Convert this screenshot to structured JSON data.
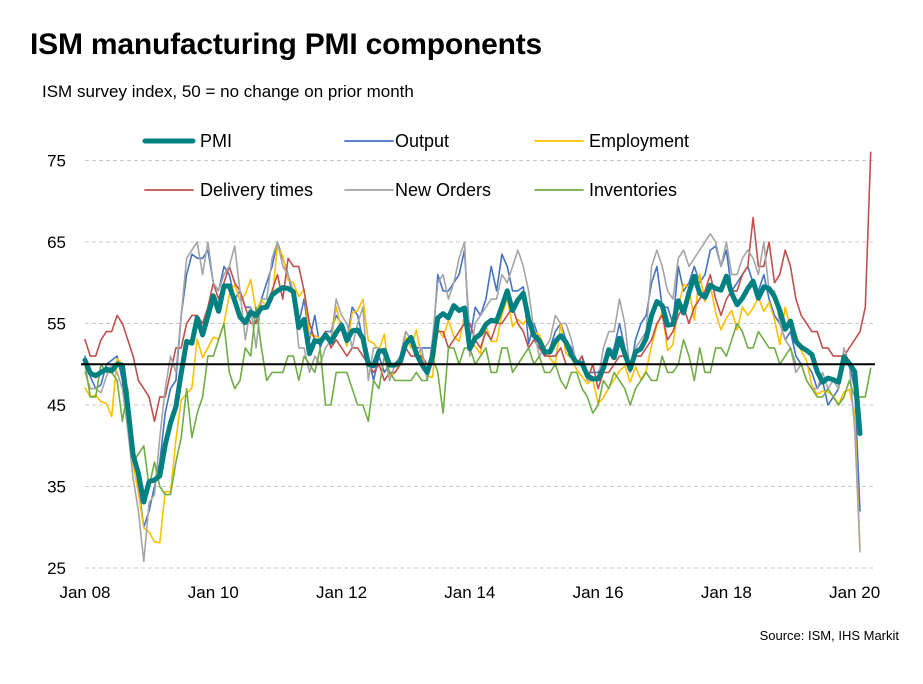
{
  "title": "ISM manufacturing PMI components",
  "subtitle": "ISM survey index, 50 = no change on prior month",
  "source": "Source: ISM, IHS Markit",
  "chart_data": {
    "type": "line",
    "title": "ISM manufacturing PMI components",
    "xlabel": "",
    "ylabel": "",
    "ylim": [
      25,
      76
    ],
    "yticks": [
      "25",
      "35",
      "45",
      "55",
      "65",
      "75"
    ],
    "xticks": [
      "Jan 08",
      "Jan 10",
      "Jan 12",
      "Jan 14",
      "Jan 16",
      "Jan 18",
      "Jan 20"
    ],
    "reference_line": 50,
    "grid": "horizontal dashed",
    "legend": "top",
    "x_start": "Jan 2008",
    "x_step": "month",
    "series": [
      {
        "name": "PMI",
        "color": "#008080",
        "values": [
          50.5,
          48.9,
          48.6,
          49.0,
          49.4,
          49.2,
          50.0,
          49.9,
          44.8,
          38.9,
          36.6,
          33.1,
          35.6,
          35.8,
          36.3,
          40.1,
          42.8,
          44.8,
          48.9,
          52.8,
          52.6,
          55.7,
          53.6,
          55.9,
          58.4,
          56.5,
          59.6,
          59.6,
          57.8,
          55.8,
          55.1,
          56.4,
          56.0,
          56.9,
          57.0,
          58.5,
          59.0,
          59.4,
          59.3,
          58.9,
          54.5,
          55.5,
          51.3,
          52.9,
          52.7,
          53.6,
          52.7,
          53.9,
          54.8,
          52.9,
          54.1,
          54.2,
          53.2,
          50.0,
          49.8,
          51.6,
          51.7,
          49.9,
          49.9,
          50.3,
          52.5,
          53.3,
          51.3,
          50.0,
          49.0,
          50.9,
          55.7,
          56.2,
          55.7,
          57.2,
          56.6,
          56.9,
          51.9,
          53.2,
          53.7,
          54.9,
          55.4,
          55.3,
          57.1,
          59.0,
          56.6,
          57.9,
          58.7,
          55.5,
          53.5,
          52.9,
          51.5,
          51.5,
          52.8,
          53.5,
          52.7,
          51.1,
          50.2,
          50.1,
          48.6,
          48.2,
          48.2,
          49.5,
          51.8,
          50.8,
          53.2,
          51.3,
          49.4,
          51.5,
          51.9,
          53.2,
          56.0,
          57.7,
          57.2,
          54.8,
          54.9,
          57.8,
          56.3,
          58.8,
          60.8,
          58.7,
          58.2,
          59.7,
          59.3,
          59.1,
          60.8,
          58.7,
          57.3,
          58.1,
          59.3,
          60.2,
          58.1,
          59.5,
          59.3,
          58.3,
          56.6,
          54.3,
          55.3,
          52.8,
          52.1,
          51.7,
          51.2,
          49.1,
          47.8,
          48.3,
          48.1,
          47.8,
          50.9,
          50.1,
          49.1,
          41.5
        ]
      },
      {
        "name": "Output",
        "color": "#4472c4",
        "values": [
          51.0,
          48.5,
          47.0,
          47.5,
          50.0,
          50.5,
          51.0,
          48.0,
          42.0,
          40.0,
          35.0,
          30.0,
          32.0,
          35.0,
          38.0,
          44.0,
          47.0,
          48.0,
          56.0,
          61.0,
          63.5,
          63.0,
          63.0,
          64.0,
          60.0,
          59.0,
          62.0,
          61.0,
          58.0,
          59.0,
          57.0,
          57.0,
          55.0,
          58.0,
          60.0,
          62.0,
          65.0,
          63.0,
          61.0,
          58.0,
          55.0,
          58.0,
          53.0,
          56.0,
          52.0,
          54.0,
          54.0,
          56.0,
          55.0,
          53.0,
          57.0,
          56.0,
          53.0,
          51.0,
          48.0,
          51.0,
          49.0,
          50.0,
          50.0,
          51.0,
          54.0,
          53.0,
          52.0,
          52.0,
          52.0,
          52.0,
          61.0,
          59.0,
          59.0,
          60.0,
          61.0,
          64.0,
          53.0,
          57.0,
          56.0,
          58.0,
          62.0,
          59.0,
          63.5,
          62.0,
          59.0,
          59.0,
          59.5,
          52.5,
          55.0,
          53.0,
          51.0,
          52.0,
          54.0,
          55.0,
          53.0,
          52.0,
          50.0,
          51.0,
          49.0,
          49.0,
          49.0,
          50.0,
          51.0,
          52.0,
          55.0,
          52.0,
          49.0,
          53.0,
          55.0,
          56.0,
          60.0,
          62.0,
          57.0,
          57.0,
          55.0,
          62.0,
          59.0,
          60.0,
          62.0,
          60.0,
          61.0,
          64.0,
          64.5,
          62.0,
          64.0,
          59.0,
          60.0,
          61.0,
          62.0,
          60.0,
          59.0,
          61.0,
          58.0,
          56.0,
          55.0,
          53.0,
          54.0,
          51.0,
          50.0,
          50.0,
          49.0,
          47.0,
          48.0,
          45.0,
          46.0,
          47.0,
          51.0,
          50.0,
          47.0,
          32.0
        ]
      },
      {
        "name": "Employment",
        "color": "#ffc000",
        "values": [
          47.1,
          46.0,
          46.2,
          45.4,
          45.2,
          43.6,
          50.7,
          50.0,
          41.8,
          37.7,
          34.2,
          29.9,
          29.4,
          28.2,
          28.1,
          34.4,
          34.3,
          40.7,
          45.6,
          46.4,
          47.1,
          53.1,
          50.8,
          52.0,
          53.3,
          53.1,
          55.1,
          58.5,
          59.8,
          57.8,
          58.6,
          60.4,
          56.5,
          57.9,
          57.0,
          57.9,
          64.5,
          63.3,
          60.3,
          60.0,
          58.3,
          59.2,
          53.5,
          53.5,
          53.2,
          53.3,
          52.6,
          57.1,
          54.2,
          52.2,
          56.3,
          56.6,
          58.0,
          52.9,
          52.6,
          51.7,
          53.7,
          48.4,
          49.0,
          49.9,
          53.3,
          52.0,
          54.2,
          50.7,
          48.6,
          48.4,
          54.4,
          53.3,
          55.4,
          53.4,
          52.8,
          55.9,
          52.3,
          52.2,
          51.3,
          54.7,
          52.8,
          52.8,
          56.0,
          58.1,
          54.6,
          55.5,
          54.9,
          56.0,
          54.0,
          53.6,
          52.1,
          50.7,
          50.0,
          55.0,
          51.3,
          50.8,
          49.3,
          48.5,
          47.6,
          48.1,
          45.2,
          45.9,
          47.1,
          48.1,
          49.2,
          49.8,
          47.8,
          49.7,
          48.1,
          49.2,
          52.3,
          54.7,
          56.5,
          51.7,
          52.4,
          57.0,
          59.8,
          59.4,
          55.4,
          61.1,
          57.7,
          59.7,
          56.3,
          54.2,
          55.7,
          56.6,
          54.2,
          57.0,
          56.0,
          56.9,
          58.2,
          56.5,
          57.6,
          55.5,
          52.4,
          57.0,
          54.5,
          53.7,
          51.7,
          50.4,
          47.4,
          46.3,
          46.7,
          46.6,
          46.1,
          45.1,
          46.6,
          46.9,
          43.8,
          27.5
        ]
      },
      {
        "name": "Delivery times",
        "color": "#c0504d",
        "values": [
          53.0,
          51.0,
          51.0,
          53.0,
          54.0,
          54.0,
          56.0,
          55.0,
          53.0,
          51.0,
          48.0,
          47.0,
          46.0,
          43.0,
          46.0,
          46.0,
          49.0,
          52.0,
          52.0,
          55.0,
          56.0,
          56.0,
          55.0,
          57.0,
          60.0,
          58.0,
          60.0,
          62.0,
          60.0,
          59.0,
          57.0,
          55.0,
          55.0,
          57.0,
          57.0,
          59.0,
          61.0,
          58.0,
          63.0,
          62.0,
          62.0,
          59.0,
          55.0,
          53.0,
          53.0,
          54.0,
          52.0,
          53.0,
          52.0,
          51.0,
          52.0,
          52.0,
          51.0,
          50.0,
          49.0,
          50.0,
          48.0,
          49.0,
          49.0,
          50.0,
          52.0,
          51.0,
          51.0,
          51.0,
          50.0,
          50.0,
          54.0,
          54.0,
          52.0,
          53.0,
          54.0,
          55.0,
          55.0,
          53.0,
          52.0,
          54.0,
          53.0,
          55.0,
          55.0,
          56.0,
          57.0,
          55.0,
          54.0,
          52.0,
          53.0,
          52.0,
          51.0,
          51.0,
          51.0,
          52.0,
          50.0,
          50.0,
          50.0,
          51.0,
          48.0,
          50.0,
          47.0,
          49.0,
          49.0,
          50.0,
          51.0,
          51.0,
          50.0,
          51.0,
          51.0,
          52.0,
          53.0,
          55.0,
          56.0,
          53.0,
          54.0,
          56.0,
          57.0,
          55.0,
          57.0,
          58.0,
          59.0,
          61.0,
          58.0,
          56.0,
          58.0,
          59.0,
          59.0,
          61.0,
          62.0,
          68.0,
          62.0,
          62.0,
          65.0,
          60.0,
          61.0,
          64.0,
          62.0,
          58.0,
          56.0,
          55.0,
          54.0,
          54.0,
          52.0,
          52.0,
          51.0,
          51.0,
          51.0,
          52.0,
          53.0,
          54.0,
          57.0,
          76.0
        ]
      },
      {
        "name": "New Orders",
        "color": "#a5a5a5",
        "values": [
          49.0,
          47.0,
          47.0,
          46.5,
          48.5,
          50.0,
          49.0,
          47.0,
          42.0,
          36.0,
          32.0,
          25.8,
          33.0,
          34.0,
          41.0,
          47.0,
          51.0,
          49.0,
          56.0,
          63.0,
          64.0,
          65.0,
          61.0,
          65.0,
          60.0,
          59.0,
          61.0,
          62.0,
          64.5,
          59.0,
          53.0,
          57.0,
          52.0,
          58.0,
          58.0,
          63.0,
          65.0,
          62.0,
          61.0,
          59.0,
          52.0,
          52.0,
          49.0,
          51.0,
          50.0,
          52.0,
          53.0,
          58.0,
          56.0,
          55.0,
          52.0,
          55.0,
          57.0,
          48.0,
          52.0,
          52.0,
          51.0,
          48.0,
          50.0,
          51.0,
          54.0,
          53.0,
          51.0,
          52.0,
          48.0,
          53.0,
          60.0,
          61.0,
          58.0,
          60.0,
          63.0,
          65.0,
          51.0,
          55.0,
          56.0,
          57.0,
          58.0,
          58.0,
          61.0,
          60.0,
          62.0,
          64.0,
          62.0,
          59.0,
          54.0,
          51.0,
          52.0,
          53.0,
          56.0,
          55.0,
          55.0,
          53.0,
          50.0,
          50.0,
          48.0,
          48.0,
          48.0,
          52.0,
          54.0,
          54.0,
          58.0,
          55.0,
          49.0,
          52.0,
          53.0,
          54.0,
          62.0,
          64.0,
          62.0,
          59.0,
          58.0,
          63.0,
          64.0,
          62.0,
          63.0,
          64.0,
          65.0,
          66.0,
          65.0,
          62.0,
          65.0,
          61.0,
          61.0,
          63.0,
          64.0,
          63.0,
          61.0,
          65.0,
          59.0,
          59.0,
          55.0,
          53.0,
          52.0,
          49.0,
          50.0,
          48.0,
          47.0,
          47.0,
          49.0,
          47.0,
          48.0,
          47.0,
          52.0,
          50.0,
          42.0,
          27.0
        ]
      },
      {
        "name": "Inventories",
        "color": "#70ad47",
        "values": [
          50.0,
          46.0,
          46.0,
          50.0,
          49.0,
          49.0,
          48.0,
          43.0,
          47.0,
          38.0,
          39.0,
          40.0,
          35.0,
          38.0,
          35.0,
          34.0,
          34.0,
          38.0,
          41.0,
          47.0,
          41.0,
          44.0,
          46.0,
          51.0,
          51.0,
          53.0,
          55.0,
          49.0,
          47.0,
          48.0,
          52.0,
          51.0,
          57.0,
          52.0,
          48.0,
          49.0,
          49.0,
          49.0,
          51.0,
          51.0,
          48.0,
          51.0,
          50.0,
          49.0,
          52.0,
          45.0,
          45.0,
          49.0,
          49.0,
          49.0,
          47.0,
          45.0,
          45.0,
          43.0,
          48.0,
          47.0,
          51.0,
          49.0,
          48.0,
          48.0,
          48.0,
          48.0,
          49.0,
          48.0,
          48.0,
          51.0,
          49.0,
          44.0,
          52.0,
          52.0,
          50.0,
          52.0,
          52.0,
          50.0,
          51.0,
          52.0,
          49.0,
          49.0,
          52.0,
          52.0,
          49.0,
          50.0,
          51.0,
          52.0,
          50.0,
          51.0,
          49.0,
          49.0,
          50.0,
          48.0,
          47.0,
          49.0,
          49.0,
          47.0,
          46.0,
          44.0,
          45.0,
          48.0,
          47.0,
          49.0,
          48.0,
          47.0,
          45.0,
          47.0,
          48.0,
          49.0,
          48.0,
          48.0,
          51.0,
          49.0,
          49.0,
          50.0,
          53.0,
          51.0,
          48.0,
          52.0,
          49.0,
          49.0,
          52.0,
          52.0,
          51.0,
          53.0,
          55.0,
          54.0,
          52.0,
          52.0,
          54.0,
          53.0,
          52.0,
          52.0,
          50.0,
          51.0,
          52.0,
          50.0,
          50.0,
          48.0,
          47.0,
          46.0,
          46.0,
          47.0,
          46.0,
          45.0,
          46.0,
          48.0,
          46.0,
          46.0,
          46.0,
          49.5
        ]
      }
    ]
  }
}
